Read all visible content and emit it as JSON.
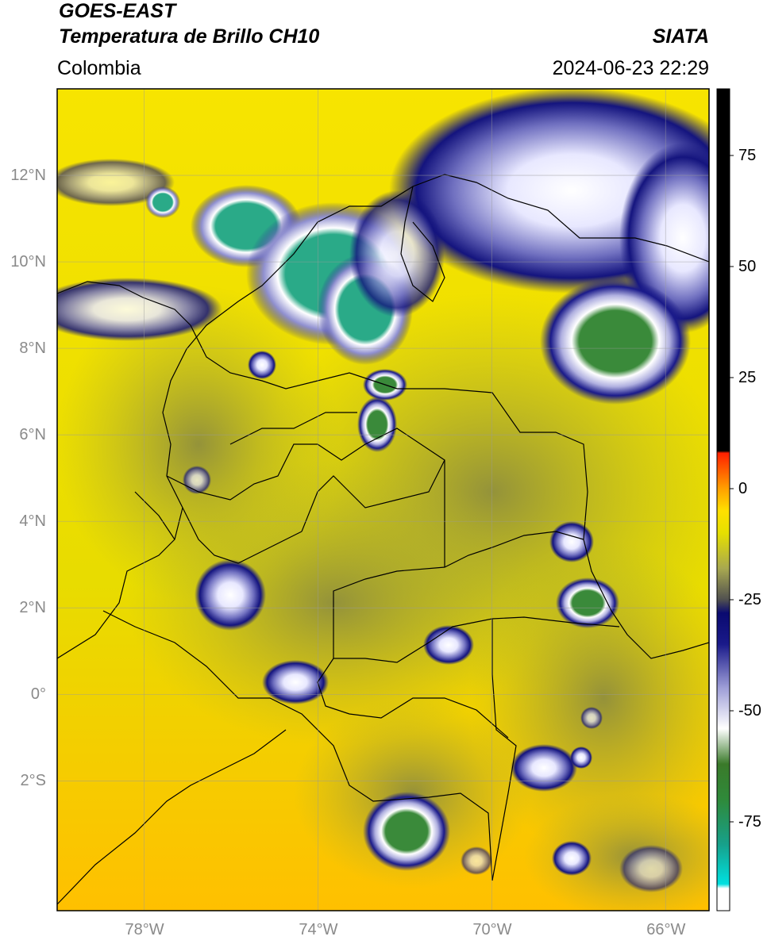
{
  "header": {
    "satellite": "GOES-EAST",
    "product": "Temperatura de Brillo CH10",
    "agency": "SIATA",
    "region": "Colombia",
    "datetime": "2024-06-23 22:29"
  },
  "map": {
    "lon_range": [
      -80,
      -65
    ],
    "lat_range": [
      -5,
      14
    ],
    "lat_ticks": [
      {
        "value": 12,
        "label": "12°N"
      },
      {
        "value": 10,
        "label": "10°N"
      },
      {
        "value": 8,
        "label": "8°N"
      },
      {
        "value": 6,
        "label": "6°N"
      },
      {
        "value": 4,
        "label": "4°N"
      },
      {
        "value": 2,
        "label": "2°N"
      },
      {
        "value": 0,
        "label": "0°"
      },
      {
        "value": -2,
        "label": "2°S"
      }
    ],
    "lon_ticks": [
      {
        "value": -78,
        "label": "78°W"
      },
      {
        "value": -74,
        "label": "74°W"
      },
      {
        "value": -70,
        "label": "70°W"
      },
      {
        "value": -66,
        "label": "66°W"
      }
    ],
    "gridlines": true,
    "background_color": "#f2e100"
  },
  "colorbar": {
    "range": [
      -95,
      90
    ],
    "ticks": [
      {
        "value": 75,
        "label": "75"
      },
      {
        "value": 50,
        "label": "50"
      },
      {
        "value": 25,
        "label": "25"
      },
      {
        "value": 0,
        "label": "0"
      },
      {
        "value": -25,
        "label": "-25"
      },
      {
        "value": -50,
        "label": "-50"
      },
      {
        "value": -75,
        "label": "-75"
      }
    ],
    "stops": [
      {
        "value": -95,
        "color": "#ffffff"
      },
      {
        "value": -90,
        "color": "#ffffff"
      },
      {
        "value": -89,
        "color": "#00e0e0"
      },
      {
        "value": -80,
        "color": "#17a08a"
      },
      {
        "value": -70,
        "color": "#2f8a3a"
      },
      {
        "value": -62,
        "color": "#3a7a2a"
      },
      {
        "value": -54,
        "color": "#ffffff"
      },
      {
        "value": -45,
        "color": "#a0a0d8"
      },
      {
        "value": -35,
        "color": "#1a1a8a"
      },
      {
        "value": -28,
        "color": "#0a0a70"
      },
      {
        "value": -25,
        "color": "#505050"
      },
      {
        "value": -18,
        "color": "#a8a850"
      },
      {
        "value": -10,
        "color": "#e6e000"
      },
      {
        "value": -5,
        "color": "#ffe000"
      },
      {
        "value": 0,
        "color": "#ffa000"
      },
      {
        "value": 5,
        "color": "#ff5000"
      },
      {
        "value": 8,
        "color": "#ff2000"
      },
      {
        "value": 8.5,
        "color": "#000000"
      },
      {
        "value": 90,
        "color": "#000000"
      }
    ]
  }
}
